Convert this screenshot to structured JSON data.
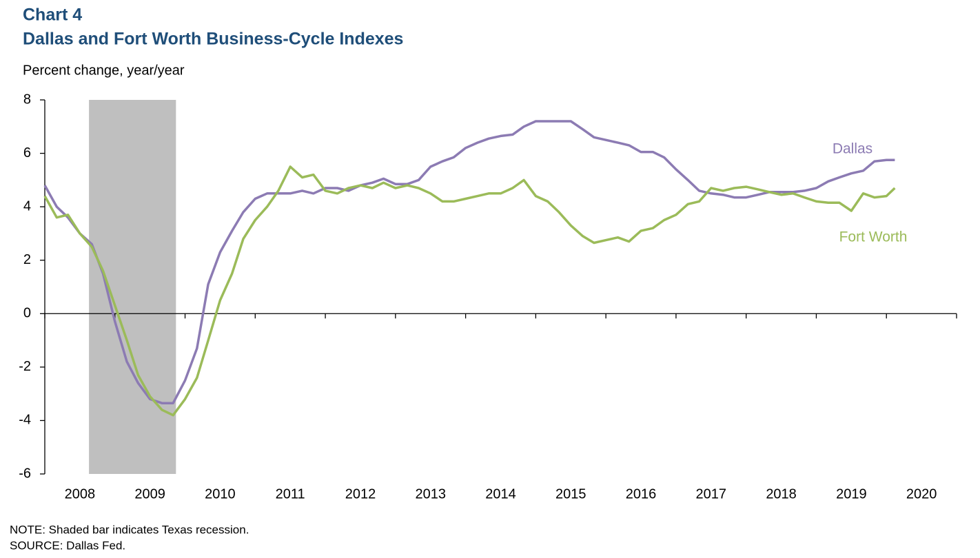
{
  "chart_data": {
    "type": "line",
    "label": "Chart 4",
    "title": "Dallas and Fort Worth Business-Cycle Indexes",
    "y_label": "Percent change, year/year",
    "note": "NOTE: Shaded bar indicates Texas recession.",
    "source": "SOURCE: Dallas Fed.",
    "recession": [
      2008.63,
      2009.87
    ],
    "recession_color": "#bfbfbf",
    "xlim": [
      2008,
      2021
    ],
    "xticks": [
      2008,
      2009,
      2010,
      2011,
      2012,
      2013,
      2014,
      2015,
      2016,
      2017,
      2018,
      2019,
      2020
    ],
    "ylim": [
      -6,
      8
    ],
    "yticks": [
      -6,
      -4,
      -2,
      0,
      2,
      4,
      6,
      8
    ],
    "x": [
      2008.0,
      2008.17,
      2008.33,
      2008.5,
      2008.67,
      2008.83,
      2009.0,
      2009.17,
      2009.33,
      2009.5,
      2009.67,
      2009.83,
      2010.0,
      2010.17,
      2010.33,
      2010.5,
      2010.67,
      2010.83,
      2011.0,
      2011.17,
      2011.33,
      2011.5,
      2011.67,
      2011.83,
      2012.0,
      2012.17,
      2012.33,
      2012.5,
      2012.67,
      2012.83,
      2013.0,
      2013.17,
      2013.33,
      2013.5,
      2013.67,
      2013.83,
      2014.0,
      2014.17,
      2014.33,
      2014.5,
      2014.67,
      2014.83,
      2015.0,
      2015.17,
      2015.33,
      2015.5,
      2015.67,
      2015.83,
      2016.0,
      2016.17,
      2016.33,
      2016.5,
      2016.67,
      2016.83,
      2017.0,
      2017.17,
      2017.33,
      2017.5,
      2017.67,
      2017.83,
      2018.0,
      2018.17,
      2018.33,
      2018.5,
      2018.67,
      2018.83,
      2019.0,
      2019.17,
      2019.33,
      2019.5,
      2019.67,
      2019.83,
      2020.0,
      2020.12
    ],
    "series": [
      {
        "name": "Dallas",
        "color": "#8c7bb3",
        "values": [
          4.8,
          4.0,
          3.6,
          3.0,
          2.6,
          1.5,
          -0.3,
          -1.8,
          -2.6,
          -3.2,
          -3.35,
          -3.35,
          -2.5,
          -1.3,
          1.1,
          2.3,
          3.1,
          3.8,
          4.3,
          4.5,
          4.5,
          4.5,
          4.6,
          4.5,
          4.7,
          4.7,
          4.6,
          4.8,
          4.9,
          5.05,
          4.85,
          4.85,
          5.0,
          5.5,
          5.7,
          5.85,
          6.2,
          6.4,
          6.55,
          6.65,
          6.7,
          7.0,
          7.2,
          7.2,
          7.2,
          7.2,
          6.9,
          6.6,
          6.5,
          6.4,
          6.3,
          6.05,
          6.05,
          5.85,
          5.4,
          5.0,
          4.6,
          4.5,
          4.45,
          4.35,
          4.35,
          4.45,
          4.55,
          4.55,
          4.55,
          4.6,
          4.7,
          4.95,
          5.1,
          5.25,
          5.35,
          5.7,
          5.75,
          5.75
        ]
      },
      {
        "name": "Fort Worth",
        "color": "#9bbb59",
        "values": [
          4.4,
          3.6,
          3.7,
          3.0,
          2.5,
          1.6,
          0.3,
          -1.0,
          -2.3,
          -3.1,
          -3.6,
          -3.8,
          -3.2,
          -2.4,
          -1.0,
          0.5,
          1.5,
          2.8,
          3.5,
          4.0,
          4.6,
          5.5,
          5.1,
          5.2,
          4.6,
          4.5,
          4.7,
          4.8,
          4.7,
          4.9,
          4.7,
          4.8,
          4.7,
          4.5,
          4.2,
          4.2,
          4.3,
          4.4,
          4.5,
          4.5,
          4.7,
          5.0,
          4.4,
          4.2,
          3.8,
          3.3,
          2.9,
          2.65,
          2.75,
          2.85,
          2.7,
          3.1,
          3.2,
          3.5,
          3.7,
          4.1,
          4.2,
          4.7,
          4.6,
          4.7,
          4.75,
          4.65,
          4.55,
          4.45,
          4.5,
          4.35,
          4.2,
          4.15,
          4.15,
          3.85,
          4.5,
          4.35,
          4.4,
          4.7
        ]
      }
    ]
  }
}
